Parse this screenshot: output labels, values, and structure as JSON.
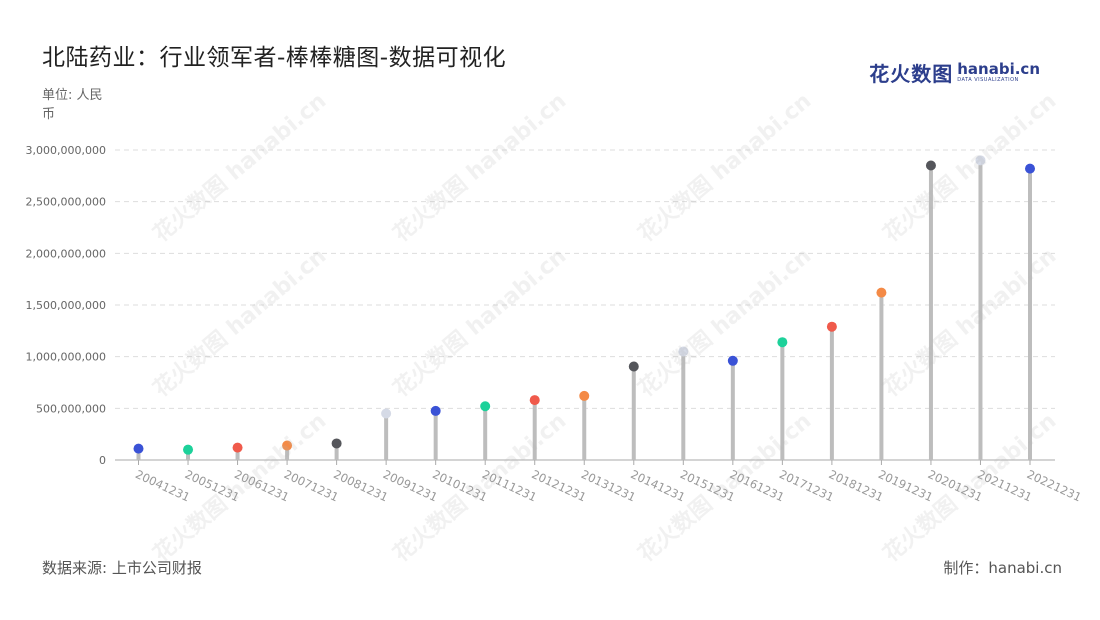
{
  "header": {
    "title": "北陆药业：行业领军者-棒棒糖图-数据可视化",
    "unit": "单位: 人民币"
  },
  "brand": {
    "cn": "花火数图",
    "en": "hanabi.cn",
    "sub": "DATA VISUALIZATION"
  },
  "footer": {
    "source": "数据来源: 上市公司财报",
    "credit": "制作：hanabi.cn"
  },
  "watermark": "花火数图 hanabi.cn",
  "colors": {
    "stem": "#bdbdbd",
    "grid": "#dddddd",
    "palette": [
      "#3a52d6",
      "#1dd19a",
      "#f05a4b",
      "#f48a46",
      "#55565b",
      "#d5dae6"
    ]
  },
  "chart_data": {
    "type": "lollipop",
    "title": "北陆药业：行业领军者-棒棒糖图-数据可视化",
    "ylabel": "单位: 人民币",
    "ylim": [
      0,
      3000000000
    ],
    "yticks": [
      0,
      500000000,
      1000000000,
      1500000000,
      2000000000,
      2500000000,
      3000000000
    ],
    "ytick_labels": [
      "0",
      "500,000,000",
      "1,000,000,000",
      "1,500,000,000",
      "2,000,000,000",
      "2,500,000,000",
      "3,000,000,000"
    ],
    "grid": true,
    "categories": [
      "20041231",
      "20051231",
      "20061231",
      "20071231",
      "20081231",
      "20091231",
      "20101231",
      "20111231",
      "20121231",
      "20131231",
      "20141231",
      "20151231",
      "20161231",
      "20171231",
      "20181231",
      "20191231",
      "20201231",
      "20211231",
      "20221231"
    ],
    "values": [
      110000000,
      100000000,
      120000000,
      140000000,
      160000000,
      450000000,
      475000000,
      520000000,
      580000000,
      620000000,
      905000000,
      1050000000,
      960000000,
      1140000000,
      1290000000,
      1620000000,
      2850000000,
      2900000000,
      2820000000
    ]
  }
}
